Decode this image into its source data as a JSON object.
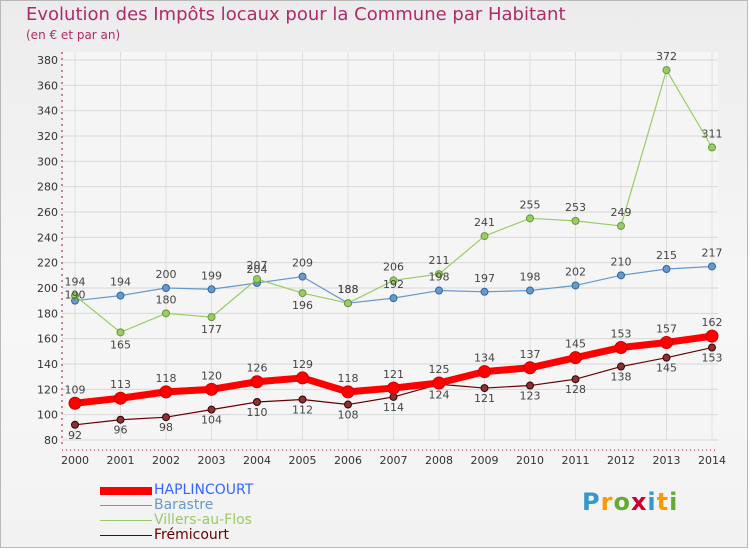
{
  "header": {
    "title": "Evolution des Impôts locaux pour la Commune par Habitant",
    "subtitle": "(en € et par an)"
  },
  "logo": {
    "text": "Proxiti"
  },
  "colors": {
    "title": "#b02a6a",
    "axis": "#c0004f",
    "HAPLINCOURT": "#ff0000",
    "Barastre": "#6699cc",
    "Villers-au-Flos": "#99cc66",
    "Frémicourt": "#660000"
  },
  "chart_data": {
    "type": "line",
    "title": "Evolution des Impôts locaux pour la Commune par Habitant",
    "subtitle": "(en € et par an)",
    "x": [
      2000,
      2001,
      2002,
      2003,
      2004,
      2005,
      2006,
      2007,
      2008,
      2009,
      2010,
      2011,
      2012,
      2013,
      2014
    ],
    "ylim": [
      80,
      380
    ],
    "yticks": [
      80,
      100,
      120,
      140,
      160,
      180,
      200,
      220,
      240,
      260,
      280,
      300,
      320,
      340,
      360,
      380
    ],
    "grid": true,
    "legend_position": "bottom-left",
    "series": [
      {
        "name": "HAPLINCOURT",
        "values": [
          109,
          113,
          118,
          120,
          126,
          129,
          118,
          121,
          125,
          134,
          137,
          145,
          153,
          157,
          162
        ]
      },
      {
        "name": "Barastre",
        "values": [
          190,
          194,
          200,
          199,
          204,
          209,
          188,
          192,
          198,
          197,
          198,
          202,
          210,
          215,
          217
        ]
      },
      {
        "name": "Villers-au-Flos",
        "values": [
          194,
          165,
          180,
          177,
          207,
          196,
          188,
          206,
          211,
          241,
          255,
          253,
          249,
          372,
          311
        ]
      },
      {
        "name": "Frémicourt",
        "values": [
          92,
          96,
          98,
          104,
          110,
          112,
          108,
          114,
          124,
          121,
          123,
          128,
          138,
          145,
          153
        ]
      }
    ]
  }
}
